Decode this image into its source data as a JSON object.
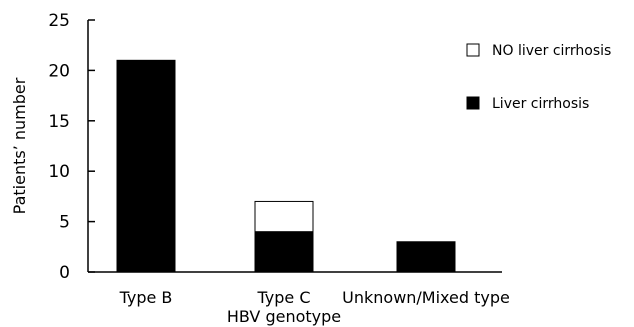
{
  "chart_data": {
    "type": "bar",
    "stacked": true,
    "categories": [
      "Type B",
      "Type C",
      "Unknown/Mixed type"
    ],
    "series": [
      {
        "name": "Liver cirrhosis",
        "values": [
          21,
          4,
          3
        ],
        "color": "#000000"
      },
      {
        "name": "NO liver cirrhosis",
        "values": [
          0,
          3,
          0
        ],
        "color": "#ffffff"
      }
    ],
    "xlabel": "HBV genotype",
    "ylabel": "Patients’ number",
    "ylim": [
      0,
      25
    ],
    "yticks": [
      0,
      5,
      10,
      15,
      20,
      25
    ],
    "grid": false,
    "legend": {
      "placement": "top-right",
      "entries": [
        {
          "label": "NO liver cirrhosis",
          "swatch": "white"
        },
        {
          "label": "Liver cirrhosis",
          "swatch": "black"
        }
      ]
    }
  }
}
